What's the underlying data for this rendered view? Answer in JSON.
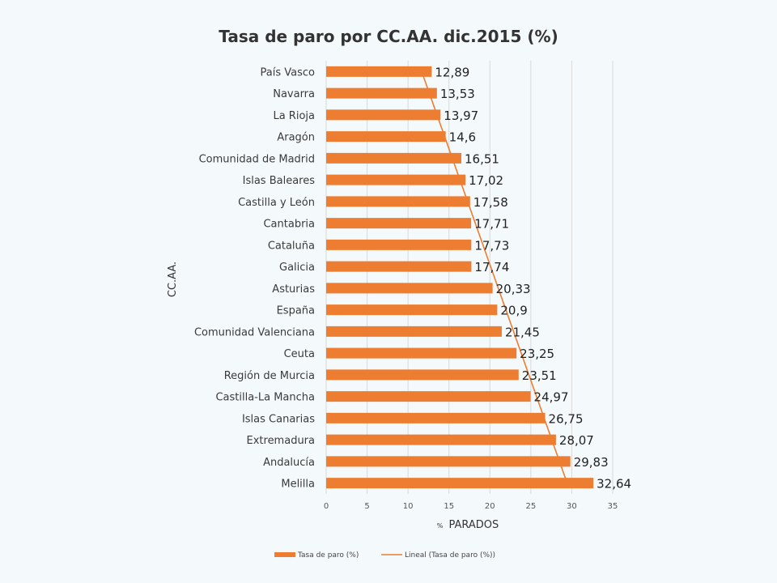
{
  "chart_data": {
    "type": "bar",
    "orientation": "horizontal",
    "title": "Tasa de paro por CC.AA. dic.2015  (%)",
    "xlabel_prefix": "%",
    "xlabel": "PARADOS",
    "ylabel": "CC.AA.",
    "xlim": [
      0,
      35
    ],
    "xticks": [
      0,
      5,
      10,
      15,
      20,
      25,
      30,
      35
    ],
    "grid": "vertical",
    "legend_position": "bottom",
    "categories": [
      "País Vasco",
      "Navarra",
      "La Rioja",
      "Aragón",
      "Comunidad de Madrid",
      "Islas Baleares",
      "Castilla y León",
      "Cantabria",
      "Cataluña",
      "Galicia",
      "Asturias",
      "España",
      "Comunidad Valenciana",
      "Ceuta",
      "Región de Murcia",
      "Castilla-La Mancha",
      "Islas Canarias",
      "Extremadura",
      "Andalucía",
      "Melilla"
    ],
    "series": [
      {
        "name": "Tasa de paro  (%)",
        "values": [
          12.89,
          13.53,
          13.97,
          14.6,
          16.51,
          17.02,
          17.58,
          17.71,
          17.73,
          17.74,
          20.33,
          20.9,
          21.45,
          23.25,
          23.51,
          24.97,
          26.75,
          28.07,
          29.83,
          32.64
        ],
        "data_labels": [
          "12,89",
          "13,53",
          "13,97",
          "14,6",
          "16,51",
          "17,02",
          "17,58",
          "17,71",
          "17,73",
          "17,74",
          "20,33",
          "20,9",
          "21,45",
          "23,25",
          "23,51",
          "24,97",
          "26,75",
          "28,07",
          "29,83",
          "32,64"
        ],
        "color": "#ed7d31"
      }
    ],
    "trendline": {
      "name": "Lineal (Tasa de paro  (%))",
      "type": "linear",
      "color": "#ed7d31"
    }
  }
}
